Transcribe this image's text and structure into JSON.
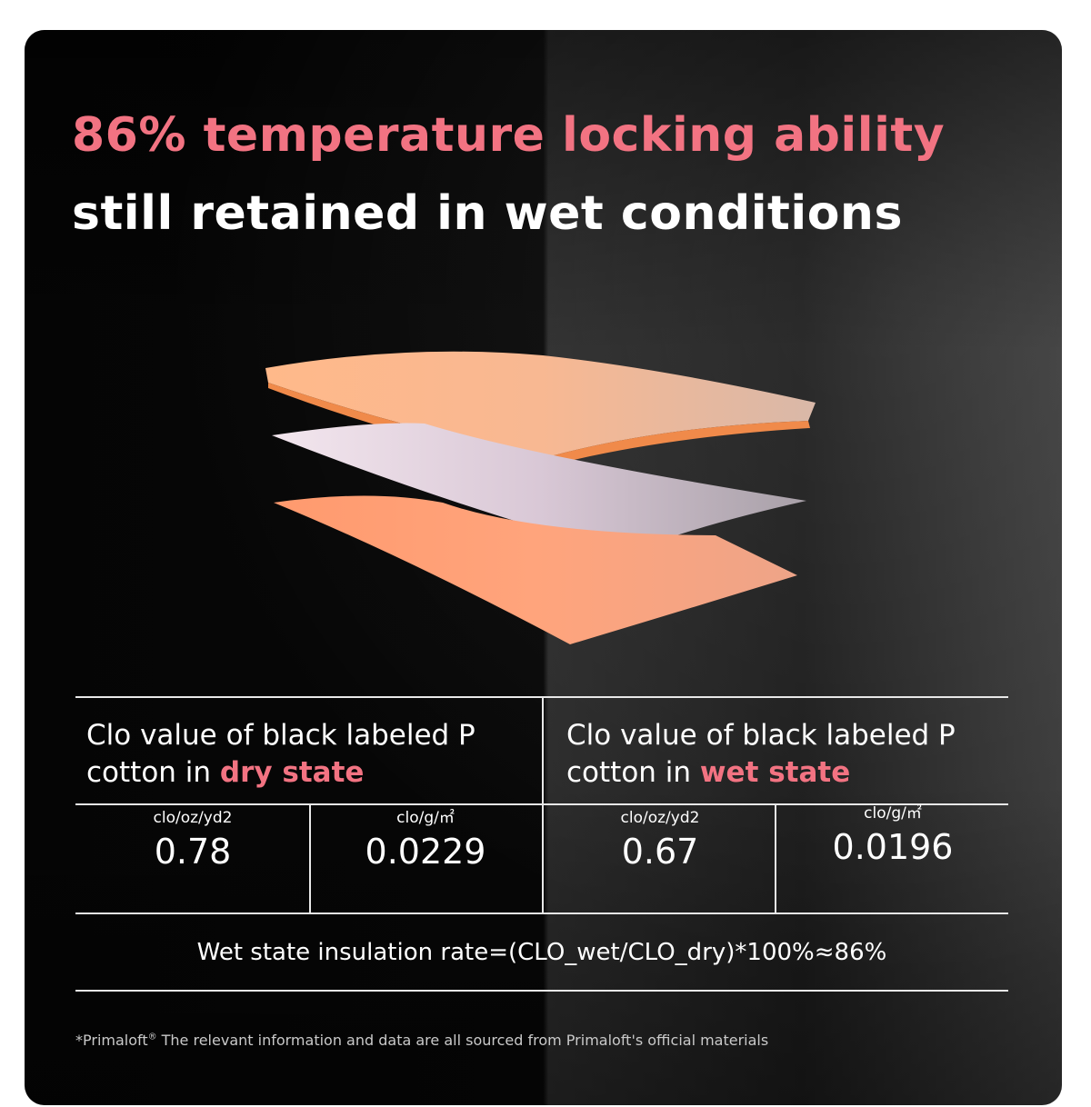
{
  "header": {
    "title_highlight": "86% temperature locking ability",
    "title": "still retained in wet conditions"
  },
  "table": {
    "columns": [
      {
        "label": "Clo value of black labeled P cotton in",
        "label_highlight": "dry state",
        "cells": [
          {
            "unit": "clo/oz/yd2",
            "value": 0.78
          },
          {
            "unit": "clo/g/㎡",
            "value": 0.0229
          }
        ]
      },
      {
        "label": "Clo value of black labeled P cotton in",
        "label_highlight": "wet state",
        "cells": [
          {
            "unit": "clo/oz/yd2",
            "value": 0.67
          },
          {
            "unit": "clo/g/㎡",
            "value": 0.0196
          }
        ]
      }
    ],
    "formula": "Wet state insulation rate=(CLO_wet/CLO_dry)*100%≈86%"
  },
  "footnote": {
    "brand": "*Primaloft",
    "mark": "®",
    "text": "The relevant information and data are all sourced from Primaloft's official materials"
  }
}
